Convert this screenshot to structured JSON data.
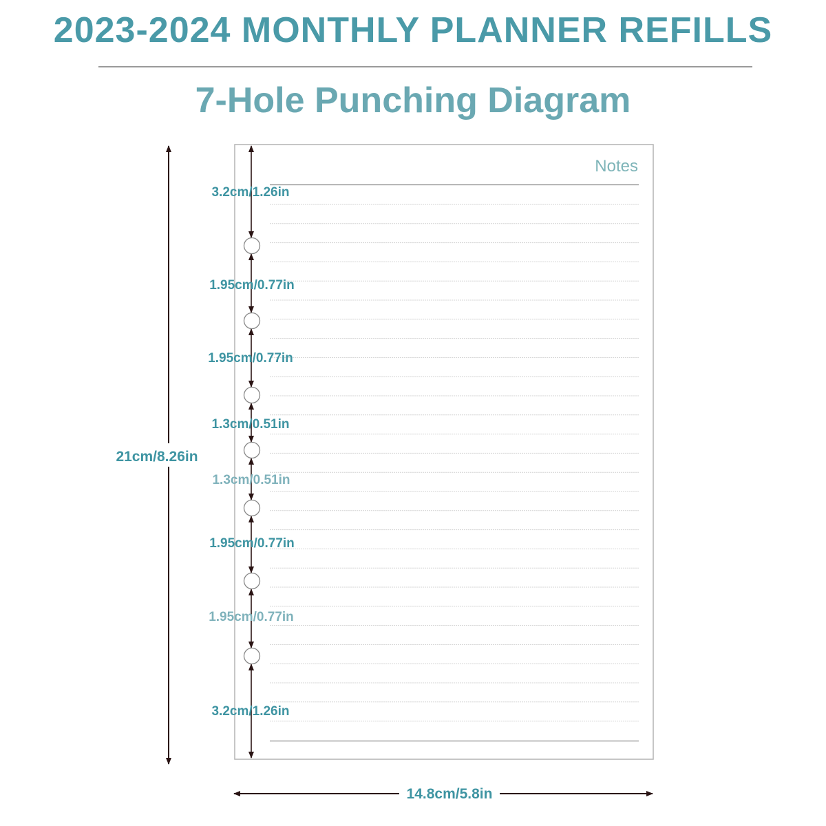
{
  "header": {
    "title": "2023-2024 MONTHLY PLANNER REFILLS",
    "subtitle": "7-Hole Punching Diagram"
  },
  "page": {
    "notes_label": "Notes",
    "height_label": "21cm/8.26in",
    "width_label": "14.8cm/5.8in",
    "hole_count": 7
  },
  "spacings": [
    {
      "label": "3.2cm/1.26in"
    },
    {
      "label": "1.95cm/0.77in"
    },
    {
      "label": "1.95cm/0.77in"
    },
    {
      "label": "1.3cm/0.51in"
    },
    {
      "label": "1.3cm/0.51in"
    },
    {
      "label": "1.95cm/0.77in"
    },
    {
      "label": "1.95cm/0.77in"
    },
    {
      "label": "3.2cm/1.26in"
    }
  ],
  "colors": {
    "title": "#4a9aa8",
    "subtitle": "#6aa8b2",
    "dimension": "#3e94a2",
    "dimension_light": "#7fb2bb",
    "arrow": "#2a1414",
    "page_border": "#b4b4b4",
    "notes": "#7fb5b9"
  }
}
